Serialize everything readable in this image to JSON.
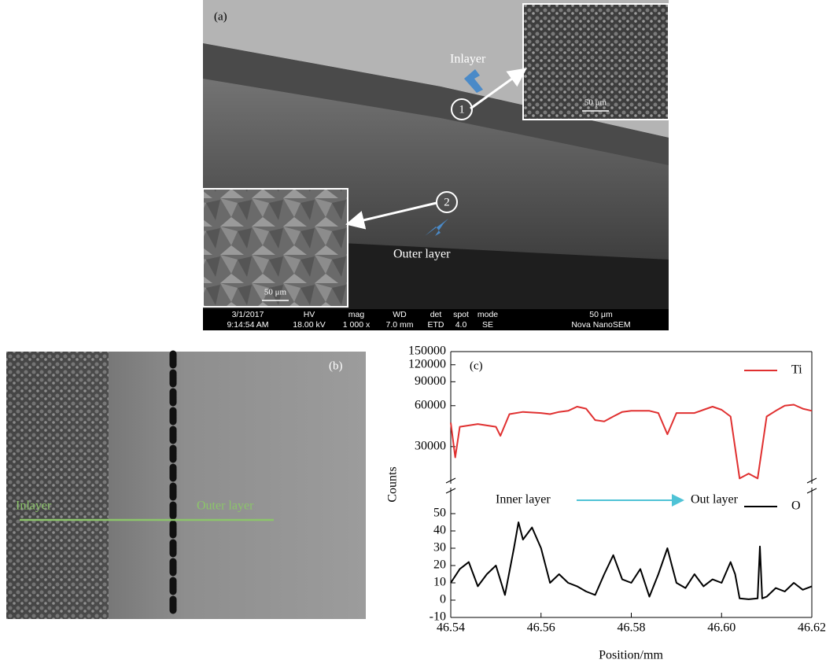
{
  "panel_a": {
    "label": "(a)",
    "inlayer": "Inlayer",
    "outer_layer": "Outer layer",
    "marker_1": "1",
    "marker_2": "2",
    "inset_1_scale": "50 μm",
    "inset_2_scale": "50 μm",
    "info_bar": {
      "date": "3/1/2017",
      "time": "9:14:54 AM",
      "hv_label": "HV",
      "hv": "18.00 kV",
      "mag_label": "mag",
      "mag": "1 000 x",
      "wd_label": "WD",
      "wd": "7.0 mm",
      "det_label": "det",
      "det": "ETD",
      "spot_label": "spot",
      "spot": "4.0",
      "mode_label": "mode",
      "mode": "SE",
      "scale": "50 μm",
      "instrument": "Nova NanoSEM"
    }
  },
  "panel_b": {
    "label": "(b)",
    "inlayer": "Inlayer",
    "outer_layer": "Outer layer"
  },
  "chart_data": {
    "type": "line",
    "label": "(c)",
    "x_label": "Position/mm",
    "y_label": "Counts",
    "xlim": [
      46.54,
      46.62
    ],
    "xticks": [
      46.54,
      46.56,
      46.58,
      {
        "value": 46.6,
        "label": "46.60"
      },
      46.62
    ],
    "annotation": {
      "from": "Inner layer",
      "to": "Out layer"
    },
    "axes": [
      {
        "ylim": [
          16000,
          150000
        ],
        "log": true,
        "yticks": [
          30000,
          60000,
          90000,
          120000,
          150000
        ],
        "legend": "upper right",
        "series": [
          {
            "name": "Ti",
            "color": "#e03030",
            "x": [
              46.54,
              46.541,
              46.542,
              46.546,
              46.55,
              46.551,
              46.553,
              46.556,
              46.56,
              46.562,
              46.564,
              46.566,
              46.568,
              46.57,
              46.572,
              46.574,
              46.576,
              46.578,
              46.58,
              46.582,
              46.584,
              46.586,
              46.588,
              46.59,
              46.592,
              46.594,
              46.596,
              46.598,
              46.6,
              46.602,
              46.604,
              46.606,
              46.608,
              46.61,
              46.612,
              46.614,
              46.616,
              46.618,
              46.62
            ],
            "values": [
              45000,
              25000,
              42000,
              44000,
              42000,
              36000,
              52000,
              54000,
              53000,
              52000,
              54000,
              55000,
              59000,
              57000,
              47000,
              46000,
              50000,
              54000,
              55000,
              55000,
              55000,
              53000,
              37000,
              53000,
              53000,
              53000,
              56000,
              59000,
              56000,
              50000,
              17500,
              19000,
              17500,
              50000,
              55000,
              60000,
              61000,
              57000,
              55000
            ]
          }
        ]
      },
      {
        "ylim": [
          -10,
          65
        ],
        "yticks": [
          -10,
          0,
          10,
          20,
          30,
          40,
          50
        ],
        "legend": "upper right",
        "series": [
          {
            "name": "O",
            "color": "#000000",
            "x": [
              46.54,
              46.542,
              46.544,
              46.546,
              46.548,
              46.55,
              46.552,
              46.554,
              46.555,
              46.556,
              46.558,
              46.56,
              46.562,
              46.564,
              46.566,
              46.568,
              46.57,
              46.572,
              46.574,
              46.576,
              46.578,
              46.58,
              46.582,
              46.584,
              46.586,
              46.588,
              46.589,
              46.59,
              46.592,
              46.594,
              46.596,
              46.598,
              46.6,
              46.602,
              46.603,
              46.604,
              46.606,
              46.608,
              46.6085,
              46.609,
              46.61,
              46.612,
              46.614,
              46.616,
              46.618,
              46.62
            ],
            "values": [
              10,
              18,
              22,
              8,
              15,
              20,
              3,
              30,
              45,
              35,
              42,
              30,
              10,
              15,
              10,
              8,
              5,
              3,
              15,
              26,
              12,
              10,
              18,
              2,
              15,
              30,
              20,
              10,
              7,
              15,
              8,
              12,
              10,
              22,
              15,
              1,
              0.5,
              1,
              31,
              1,
              2,
              7,
              5,
              10,
              6,
              8
            ]
          }
        ]
      }
    ]
  }
}
